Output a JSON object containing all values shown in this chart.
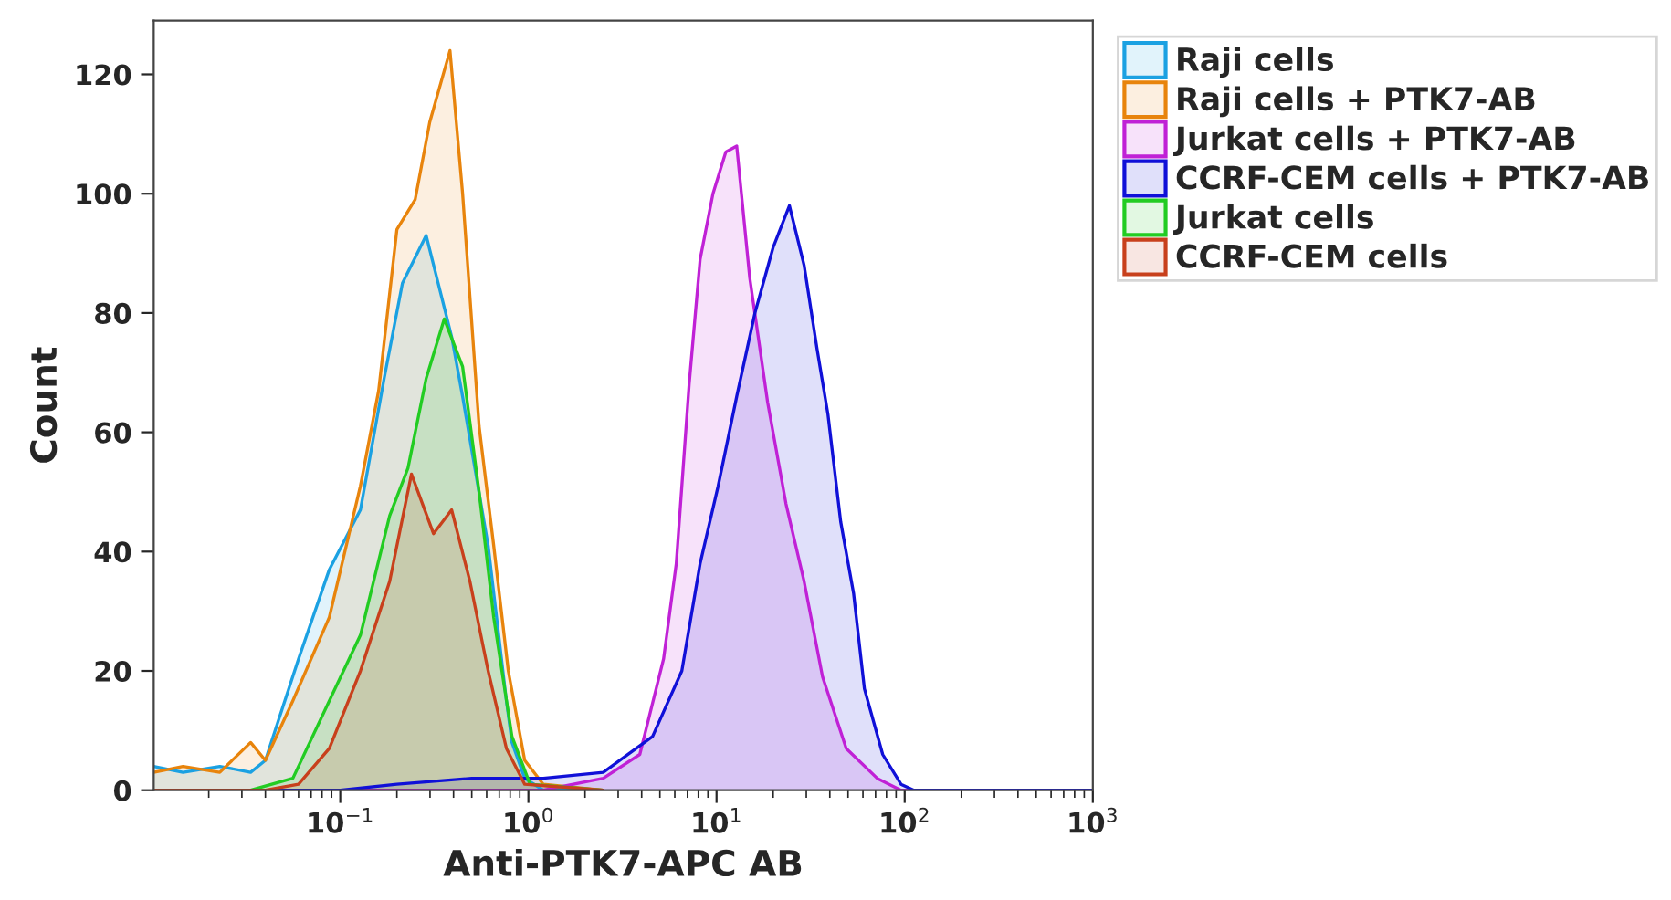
{
  "chart_data": {
    "type": "area",
    "xlabel": "Anti-PTK7-APC AB",
    "ylabel": "Count",
    "log": "x",
    "xlim": [
      0.0102,
      1000
    ],
    "ylim": [
      0,
      129
    ],
    "xticks": [
      {
        "value": 0.1,
        "label": "10$^{−1}$"
      },
      {
        "value": 1,
        "label": "10$^{0}$"
      },
      {
        "value": 10,
        "label": "10$^{1}$"
      },
      {
        "value": 100,
        "label": "10$^{2}$"
      },
      {
        "value": 1000,
        "label": "10$^{3}$"
      }
    ],
    "yticks": [
      0,
      20,
      40,
      60,
      80,
      100,
      120
    ],
    "grid": false,
    "legend": "right",
    "series": [
      {
        "name": "Raji cells",
        "color": "#1ba1e2",
        "x": [
          0.0102,
          0.0146,
          0.0229,
          0.0334,
          0.04,
          0.06,
          0.0875,
          0.128,
          0.171,
          0.214,
          0.286,
          0.391,
          0.447,
          0.611,
          0.764,
          0.818,
          0.956,
          1.2,
          2.5
        ],
        "values": [
          4,
          3,
          4,
          3,
          5,
          22,
          37,
          47,
          69,
          85,
          93,
          76,
          66,
          41,
          15,
          8,
          2,
          0,
          0
        ]
      },
      {
        "name": "Raji cells + PTK7-AB",
        "color": "#e8840c",
        "x": [
          0.0102,
          0.0146,
          0.0229,
          0.0334,
          0.04,
          0.056,
          0.0875,
          0.128,
          0.16,
          0.2,
          0.25,
          0.299,
          0.383,
          0.447,
          0.547,
          0.654,
          0.782,
          0.956,
          1.2,
          2.5
        ],
        "values": [
          3,
          4,
          3,
          8,
          5,
          15,
          29,
          51,
          67,
          94,
          99,
          112,
          124,
          100,
          61,
          41,
          20,
          5,
          1,
          0
        ]
      },
      {
        "name": "Jurkat cells + PTK7-AB",
        "color": "#c021d6",
        "x": [
          0.0102,
          0.1,
          1.2,
          2.5,
          3.91,
          5.23,
          6.11,
          7.15,
          8.18,
          9.57,
          11.2,
          12.8,
          15.0,
          18.7,
          23.4,
          29.2,
          36.6,
          48.9,
          71.4,
          95.6,
          1000
        ],
        "values": [
          0,
          0,
          0,
          2,
          6,
          22,
          38,
          68,
          89,
          100,
          107,
          108,
          86,
          65,
          48,
          35,
          19,
          7,
          2,
          0,
          0
        ]
      },
      {
        "name": "CCRF-CEM cells + PTK7-AB",
        "color": "#1010d8",
        "x": [
          0.0102,
          0.1,
          0.2,
          0.5,
          1.2,
          2.5,
          4.57,
          6.54,
          8.18,
          10.2,
          12.8,
          16.0,
          20.0,
          24.4,
          29.2,
          34.2,
          39.1,
          45.7,
          53.5,
          61.1,
          76.4,
          95.6,
          112,
          1000
        ],
        "values": [
          0,
          0,
          1,
          2,
          2,
          3,
          9,
          20,
          38,
          51,
          66,
          80,
          91,
          98,
          88,
          74,
          63,
          45,
          33,
          17,
          6,
          1,
          0,
          0
        ]
      },
      {
        "name": "Jurkat cells",
        "color": "#22cc22",
        "x": [
          0.0102,
          0.0334,
          0.056,
          0.0875,
          0.128,
          0.183,
          0.229,
          0.286,
          0.357,
          0.447,
          0.547,
          0.654,
          0.818,
          1.02,
          2.5
        ],
        "values": [
          0,
          0,
          2,
          15,
          26,
          46,
          54,
          69,
          79,
          71,
          50,
          29,
          9,
          1,
          0
        ]
      },
      {
        "name": "CCRF-CEM cells",
        "color": "#c8401c",
        "x": [
          0.0102,
          0.04,
          0.06,
          0.0875,
          0.128,
          0.183,
          0.239,
          0.313,
          0.391,
          0.489,
          0.611,
          0.764,
          0.956,
          2.5
        ],
        "values": [
          0,
          0,
          1,
          7,
          20,
          35,
          53,
          43,
          47,
          35,
          20,
          7,
          1,
          0
        ]
      }
    ]
  }
}
